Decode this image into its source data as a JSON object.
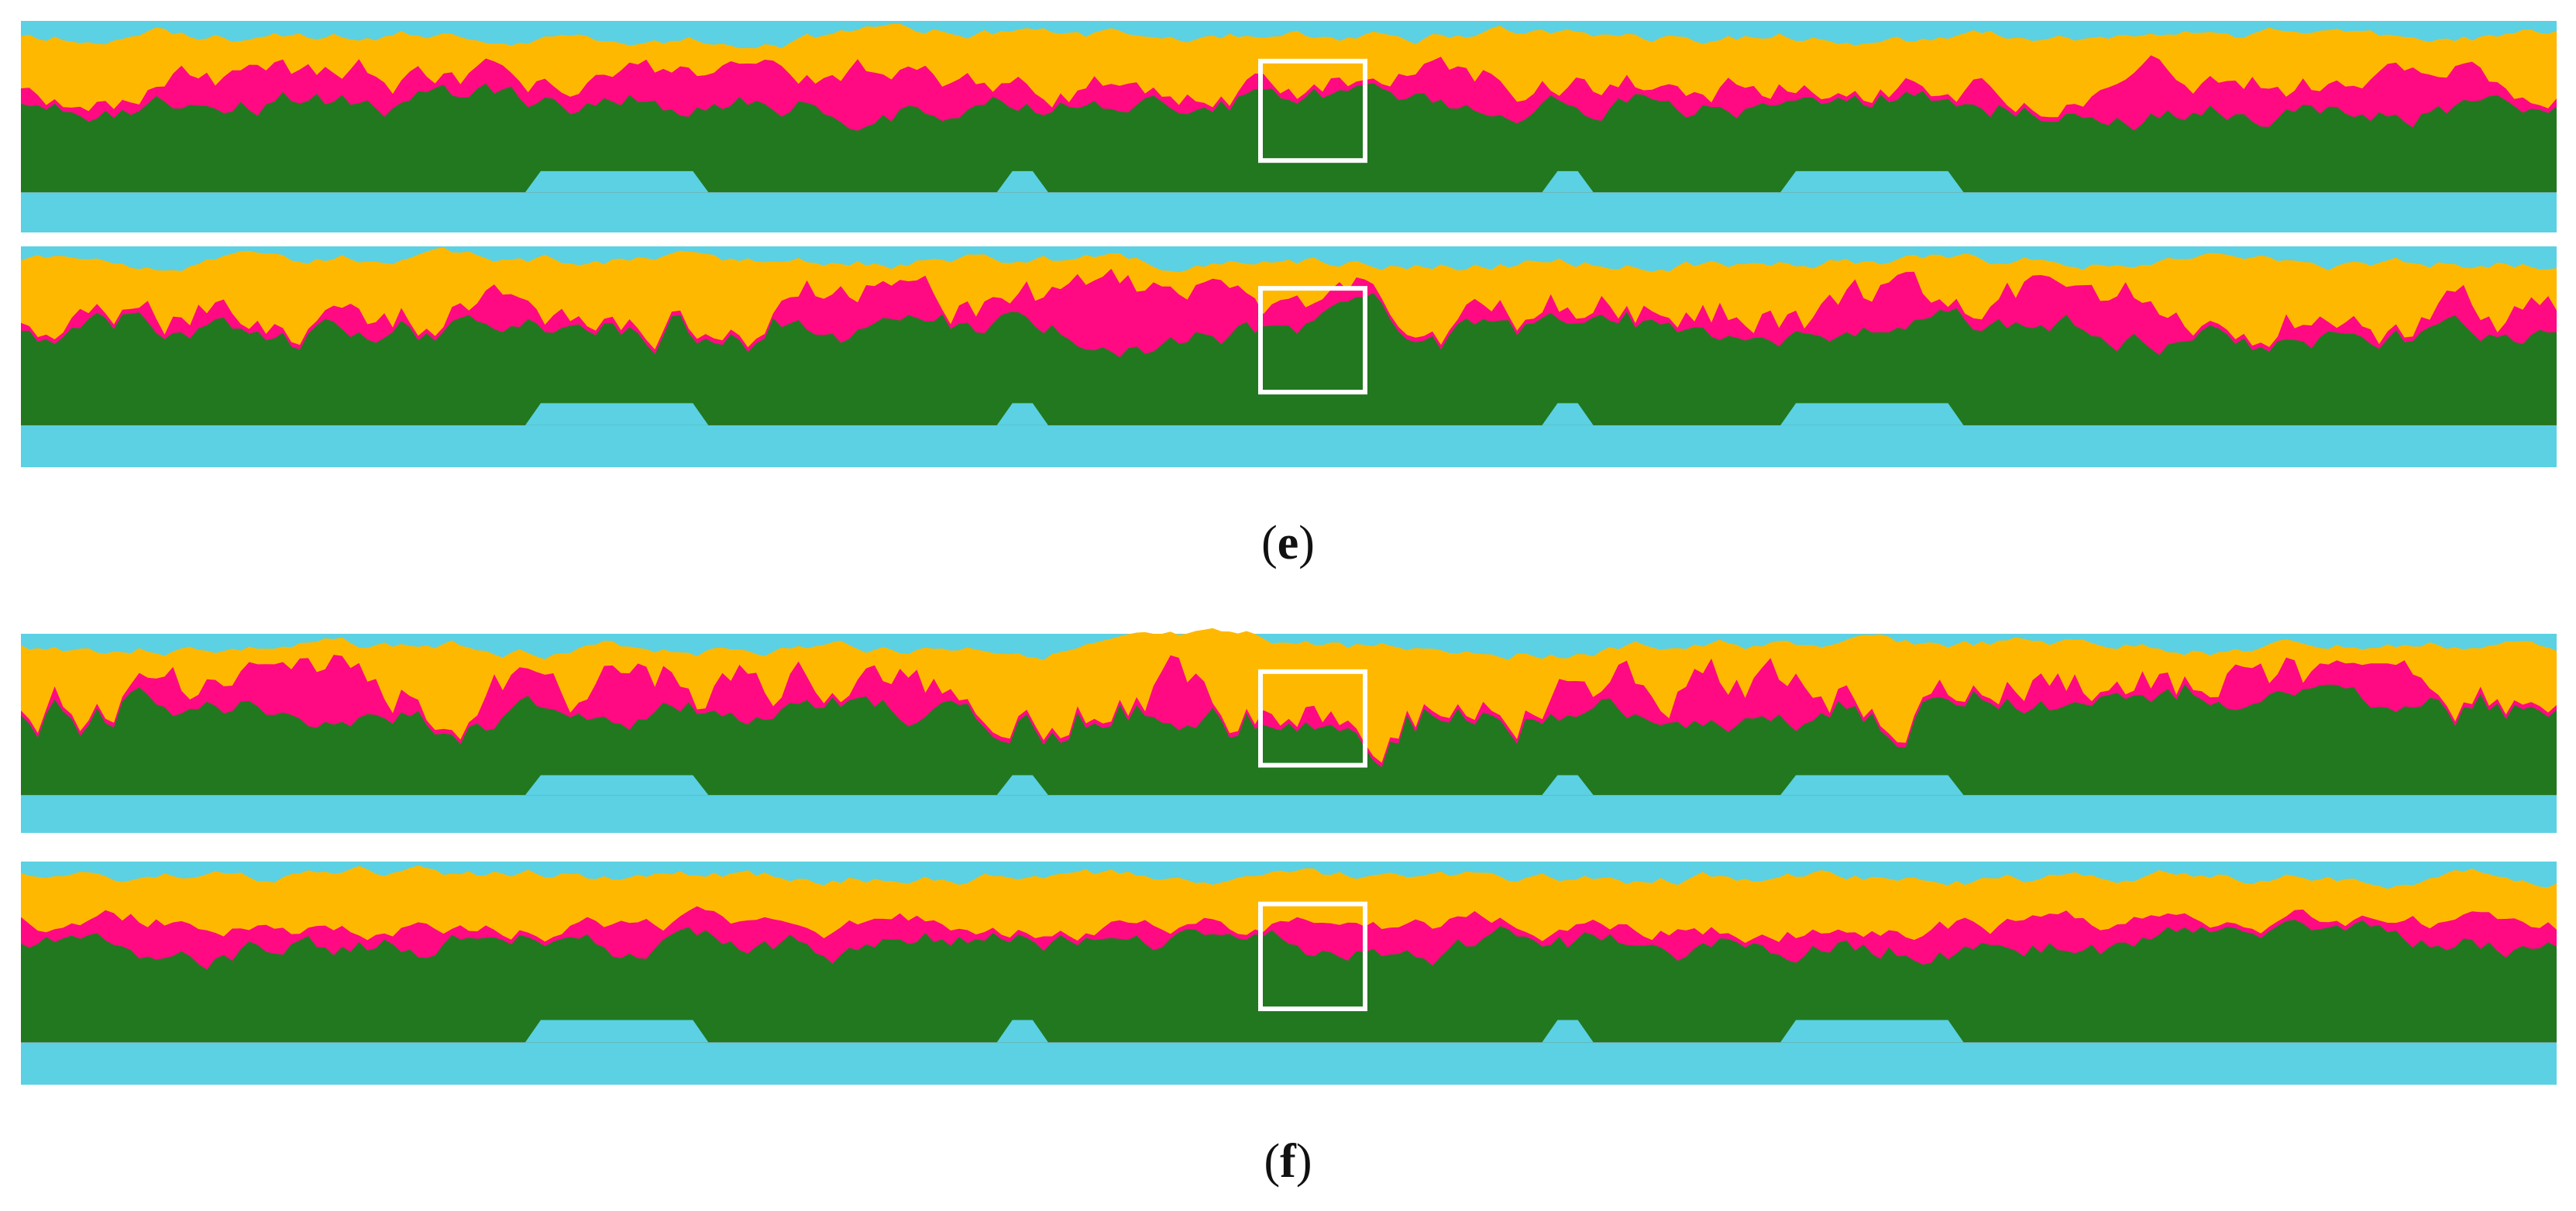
{
  "colors": {
    "background": "#5bd1e3",
    "upper_region": "#ffb800",
    "middle_region": "#ff0a82",
    "lower_region": "#21781f",
    "highlight_box": "#ffffff"
  },
  "panels": [
    {
      "id": "e",
      "label": "e",
      "strips": 2
    },
    {
      "id": "f",
      "label": "f",
      "strips": 2
    }
  ]
}
